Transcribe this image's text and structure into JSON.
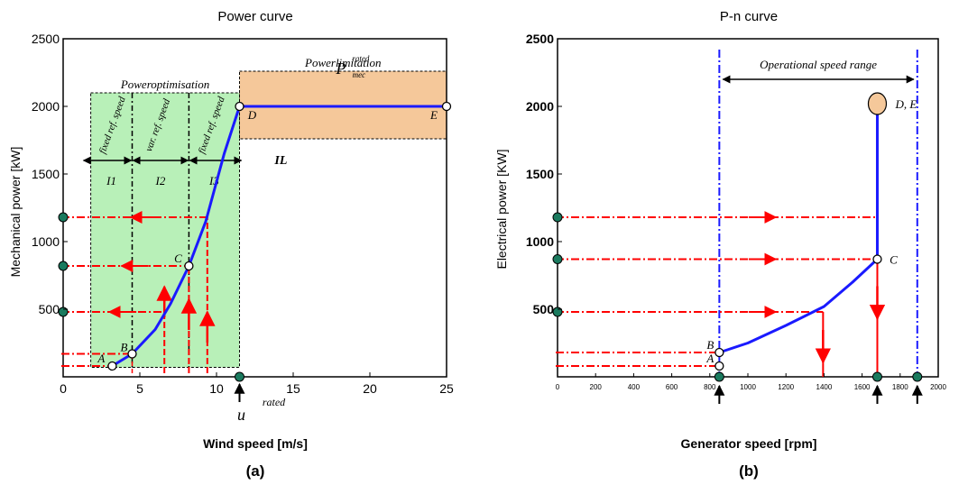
{
  "chart_data": [
    {
      "type": "line",
      "panel_label": "(a)",
      "title": "Power curve",
      "xlabel": "Wind speed [m/s]",
      "ylabel": "Mechanical power [kW]",
      "xlim": [
        0,
        25
      ],
      "ylim": [
        0,
        2500
      ],
      "xticks": [
        "0",
        "5",
        "10",
        "15",
        "20",
        "25"
      ],
      "yticks": [
        "500",
        "1000",
        "1500",
        "2000",
        "2500"
      ],
      "x_rated_label": "u",
      "x_rated_sup": "rated",
      "series": [
        {
          "values": [
            [
              3.2,
              80
            ],
            [
              4.5,
              170
            ],
            [
              6,
              350
            ],
            [
              7,
              540
            ],
            [
              8.2,
              820
            ],
            [
              9.3,
              1150
            ],
            [
              10.5,
              1650
            ],
            [
              11.5,
              2000
            ],
            [
              25,
              2000
            ]
          ]
        }
      ],
      "points": [
        {
          "label": "A",
          "x": 3.2,
          "y": 80
        },
        {
          "label": "B",
          "x": 4.5,
          "y": 170
        },
        {
          "label": "C",
          "x": 8.2,
          "y": 820
        },
        {
          "label": "D",
          "x": 11.5,
          "y": 2000
        },
        {
          "label": "E",
          "x": 25,
          "y": 2000
        }
      ],
      "regions": [
        {
          "label": "Poweroptimisation",
          "x": [
            1.8,
            11.5
          ],
          "y": [
            70,
            2100
          ],
          "color": "#b8f0b8"
        },
        {
          "label": "Powerlimitation",
          "x": [
            11.5,
            25
          ],
          "y": [
            1760,
            2260
          ],
          "color": "#f5c89a"
        }
      ],
      "intervals": [
        {
          "label": "I1",
          "note": "fixed ref. speed",
          "x": [
            1.8,
            4.5
          ]
        },
        {
          "label": "I2",
          "note": "var. ref. speed",
          "x": [
            4.5,
            8.2
          ]
        },
        {
          "label": "I3",
          "note": "fixed ref. speed",
          "x": [
            8.2,
            11.5
          ]
        },
        {
          "label": "IL",
          "note": ""
        }
      ],
      "p_rated_label": {
        "main": "P",
        "sup": "rated",
        "sub": "mec"
      },
      "red_lines": [
        {
          "y": 1180,
          "x_from": 9.4
        },
        {
          "y": 820,
          "x_from": 8.2
        },
        {
          "y": 480,
          "x_from": 6.6
        },
        {
          "y": 170,
          "x_from": 4.5
        },
        {
          "y": 80,
          "x_from": 3.2
        }
      ],
      "y_markers": [
        1180,
        820,
        480
      ],
      "colors": {
        "curve": "#1a1aff",
        "red": "#ff0000",
        "marker": "#1a7a5e"
      }
    },
    {
      "type": "line",
      "panel_label": "(b)",
      "title": "P-n curve",
      "xlabel": "Generator speed [rpm]",
      "ylabel": "Electrical power [KW]",
      "xlim": [
        0,
        2000
      ],
      "ylim": [
        0,
        2500
      ],
      "xticks": [
        "0",
        "200",
        "400",
        "600",
        "800",
        "1000",
        "1200",
        "1400",
        "1600",
        "1800",
        "2000"
      ],
      "yticks": [
        "500",
        "1000",
        "1500",
        "2000",
        "2500"
      ],
      "speed_range_label": "Operational speed range",
      "speed_range": [
        850,
        1890
      ],
      "series": [
        {
          "values": [
            [
              850,
              180
            ],
            [
              1000,
              250
            ],
            [
              1200,
              380
            ],
            [
              1400,
              520
            ],
            [
              1550,
              700
            ],
            [
              1680,
              870
            ],
            [
              1680,
              2000
            ]
          ]
        }
      ],
      "points": [
        {
          "label": "A",
          "x": 850,
          "y": 80
        },
        {
          "label": "B",
          "x": 850,
          "y": 180
        },
        {
          "label": "C",
          "x": 1680,
          "y": 870
        },
        {
          "label": "D, E",
          "x": 1680,
          "y": 2020
        }
      ],
      "red_lines": [
        {
          "y": 1180,
          "x_to": 1680
        },
        {
          "y": 870,
          "x_to": 1680
        },
        {
          "y": 480,
          "x_to": 1395
        },
        {
          "y": 180,
          "x_to": 850
        },
        {
          "y": 80,
          "x_to": 850
        }
      ],
      "y_markers": [
        1180,
        870,
        480
      ],
      "colors": {
        "curve": "#1a1aff",
        "red": "#ff0000",
        "marker": "#1a7a5e",
        "dashdot": "#1a1aff",
        "de_fill": "#f5c89a"
      }
    }
  ]
}
